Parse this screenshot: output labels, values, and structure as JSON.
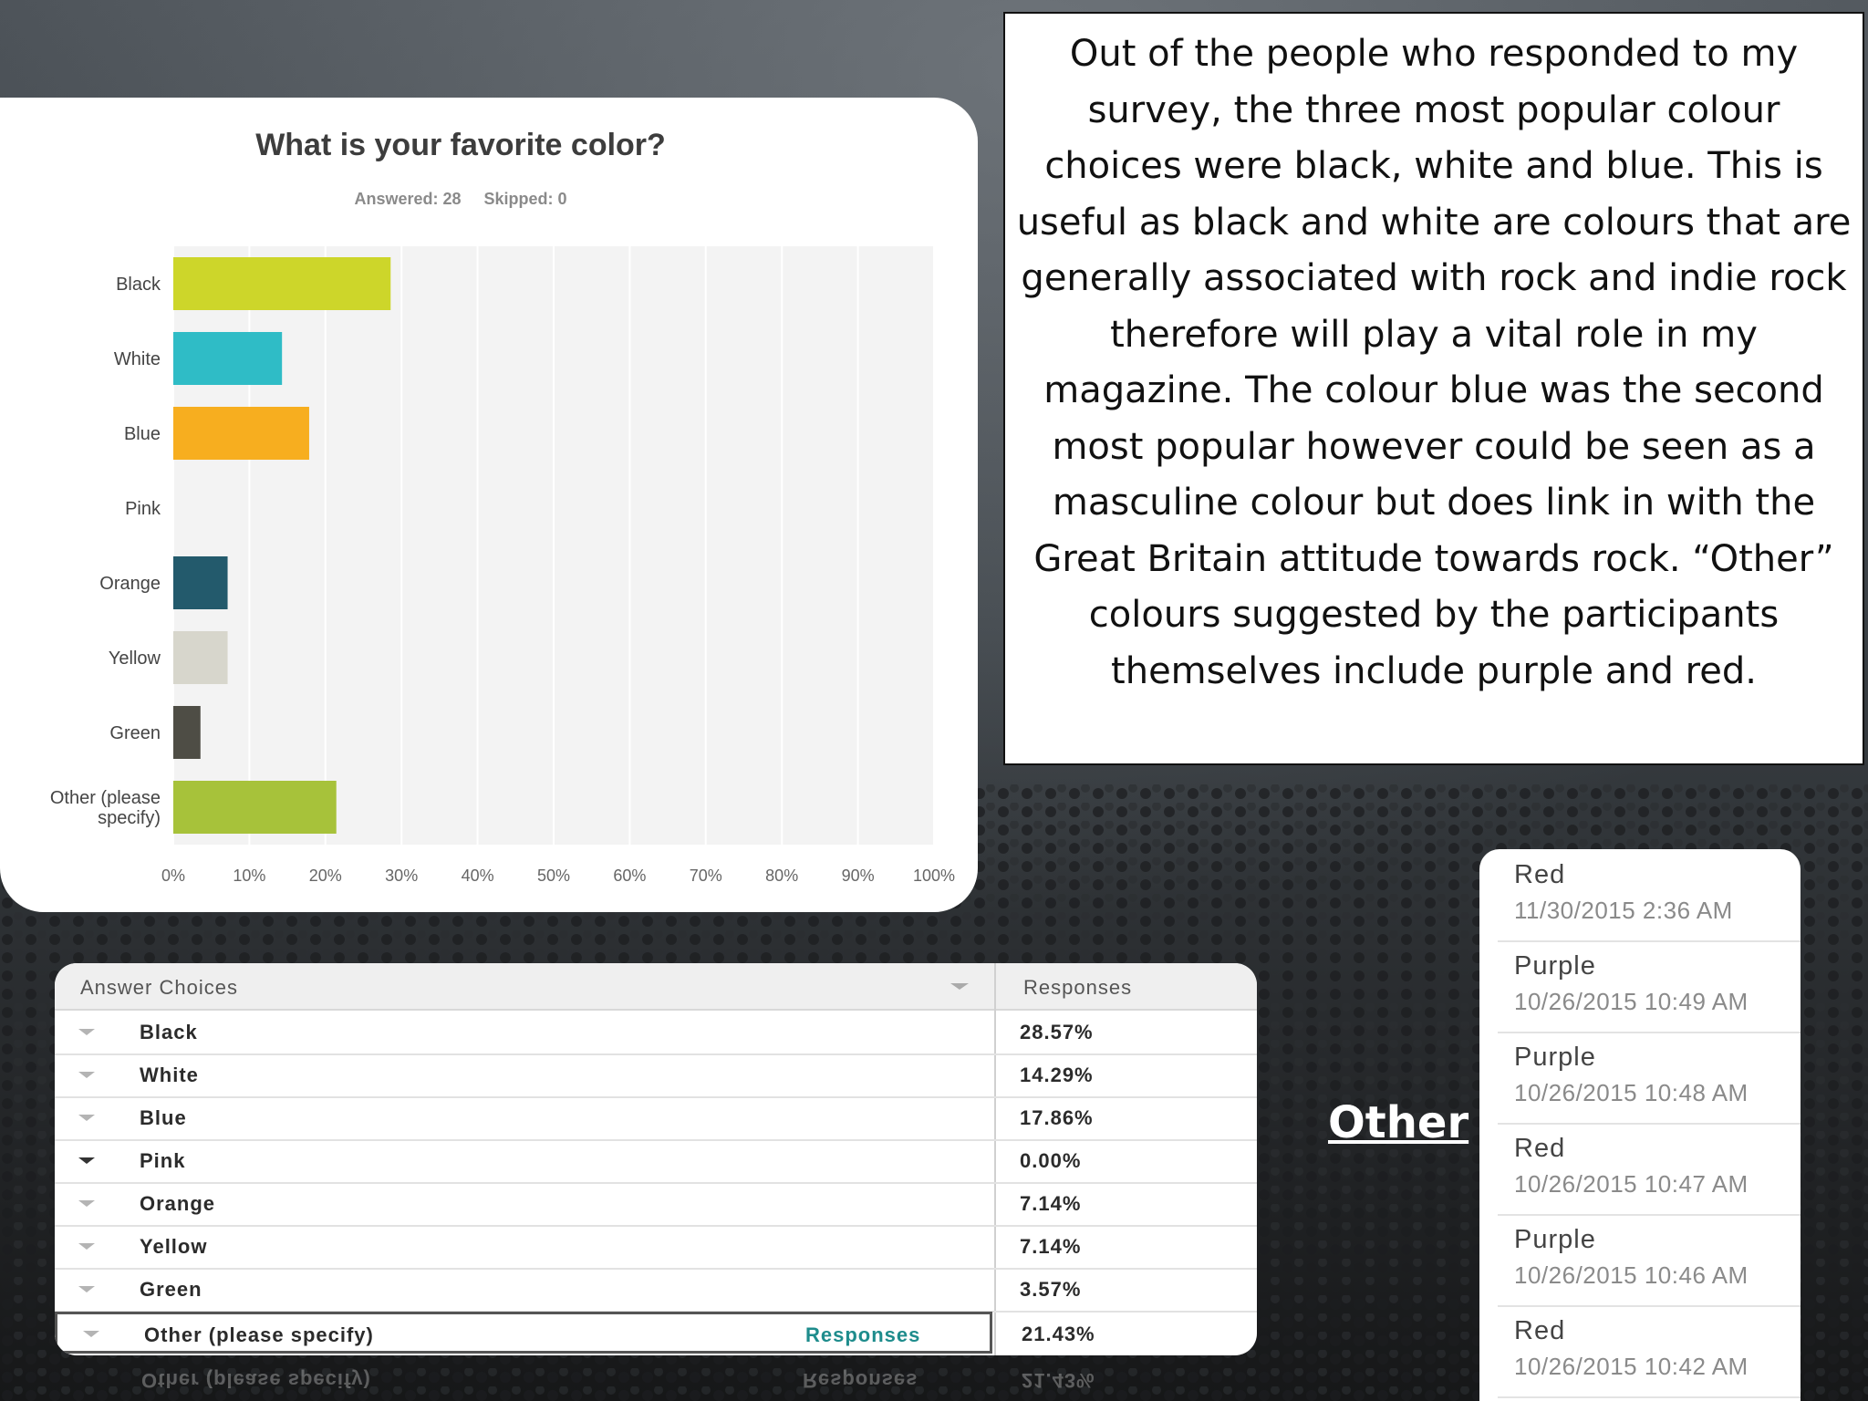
{
  "chart_data": {
    "type": "bar",
    "orientation": "horizontal",
    "title": "What is your favorite color?",
    "answered": "Answered: 28",
    "skipped": "Skipped: 0",
    "categories": [
      "Black",
      "White",
      "Blue",
      "Pink",
      "Orange",
      "Yellow",
      "Green",
      "Other (please specify)"
    ],
    "category_lines": [
      [
        "Black"
      ],
      [
        "White"
      ],
      [
        "Blue"
      ],
      [
        "Pink"
      ],
      [
        "Orange"
      ],
      [
        "Yellow"
      ],
      [
        "Green"
      ],
      [
        "Other (please",
        "specify)"
      ]
    ],
    "values": [
      28.57,
      14.29,
      17.86,
      0.0,
      7.14,
      7.14,
      3.57,
      21.43
    ],
    "bar_colors": [
      "#cdd62a",
      "#2fbcc6",
      "#f7ae1f",
      "#e87aa8",
      "#235a6c",
      "#d7d6cc",
      "#4e4d45",
      "#a7c23a"
    ],
    "xlim": [
      0,
      100
    ],
    "xticks": [
      "0%",
      "10%",
      "20%",
      "30%",
      "40%",
      "50%",
      "60%",
      "70%",
      "80%",
      "90%",
      "100%"
    ],
    "grid": true
  },
  "summary_text": "Out of the people who responded to my survey, the three most popular colour choices were black, white and blue.  This is useful as black and white are colours that are generally associated with rock and indie rock therefore will play a vital role in my magazine. The colour blue was the second most popular however could be seen as a masculine colour but does link in with the Great Britain attitude towards rock. “Other” colours suggested by the participants themselves include purple and red.",
  "table": {
    "col_choices": "Answer Choices",
    "col_responses": "Responses",
    "rows": [
      {
        "label": "Black",
        "pct": "28.57%"
      },
      {
        "label": "White",
        "pct": "14.29%"
      },
      {
        "label": "Blue",
        "pct": "17.86%"
      },
      {
        "label": "Pink",
        "pct": "0.00%"
      },
      {
        "label": "Orange",
        "pct": "7.14%"
      },
      {
        "label": "Yellow",
        "pct": "7.14%"
      },
      {
        "label": "Green",
        "pct": "3.57%"
      }
    ],
    "other_row": {
      "label": "Other (please specify)",
      "link": "Responses",
      "pct": "21.43%"
    }
  },
  "other_heading": "Other",
  "other_responses": [
    {
      "answer": "Red",
      "time": "11/30/2015 2:36 AM"
    },
    {
      "answer": "Purple",
      "time": "10/26/2015 10:49 AM"
    },
    {
      "answer": "Purple",
      "time": "10/26/2015 10:48 AM"
    },
    {
      "answer": "Red",
      "time": "10/26/2015 10:47 AM"
    },
    {
      "answer": "Purple",
      "time": "10/26/2015 10:46 AM"
    },
    {
      "answer": "Red",
      "time": "10/26/2015 10:42 AM"
    }
  ]
}
